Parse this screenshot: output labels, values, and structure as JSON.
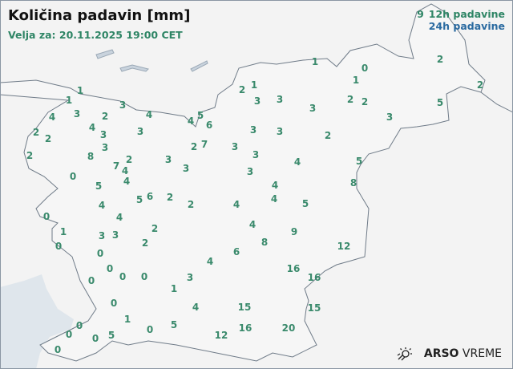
{
  "header": {
    "title": "Količina padavin [mm]",
    "valid_for": "Velja za: 20.11.2025 19:00 CET"
  },
  "legend": {
    "sample_value": "9",
    "label_12h": "12h padavine",
    "label_24h": "24h padavine",
    "color_12h": "#2e8565",
    "color_24h": "#2a6aa0"
  },
  "stations_12h": [
    "1",
    "1",
    "3",
    "4",
    "3",
    "2",
    "4",
    "4",
    "5",
    "6",
    "2",
    "2",
    "4",
    "3",
    "3",
    "3",
    "8",
    "2",
    "7",
    "2",
    "4",
    "4",
    "3",
    "3",
    "2",
    "7",
    "3",
    "3",
    "3",
    "3",
    "3",
    "3",
    "3",
    "2",
    "1",
    "1",
    "0",
    "1",
    "2",
    "2",
    "3",
    "3",
    "2",
    "2",
    "2",
    "5",
    "4",
    "5",
    "8",
    "0",
    "5",
    "4",
    "5",
    "6",
    "2",
    "2",
    "4",
    "4",
    "4",
    "5",
    "4",
    "0",
    "1",
    "0",
    "3",
    "3",
    "2",
    "2",
    "4",
    "9",
    "8",
    "6",
    "4",
    "12",
    "0",
    "0",
    "0",
    "0",
    "0",
    "3",
    "1",
    "16",
    "16",
    "0",
    "1",
    "4",
    "15",
    "15",
    "0",
    "0",
    "0",
    "5",
    "0",
    "5",
    "12",
    "16",
    "20",
    "0"
  ],
  "brand": {
    "logo_icon": "sun-weather-icon",
    "name_bold": "ARSO",
    "name_light": "VREME"
  },
  "colors": {
    "land": "#f3f3f3",
    "sea": "#dfe6ec",
    "border": "#6f7b88",
    "value_text": "#3a8a6c"
  }
}
